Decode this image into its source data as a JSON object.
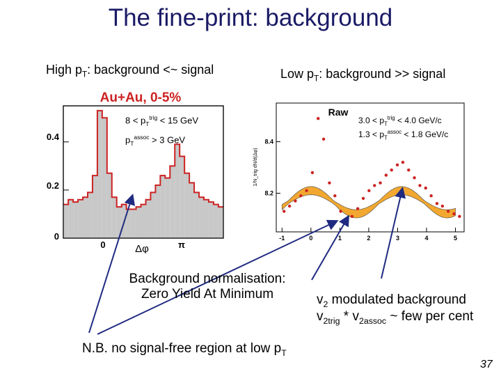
{
  "slide": {
    "title": "The fine-print: background",
    "page_number": "37",
    "left_header": {
      "text": "High p",
      "sub": "T",
      "rest": ": background <~ signal"
    },
    "right_header": {
      "text": "Low p",
      "sub": "T",
      "rest": ": background >> signal"
    },
    "note_normalisation": {
      "line1": "Background normalisation:",
      "line2": "Zero Yield At Minimum"
    },
    "note_v2": {
      "line1_main": "v",
      "line1_sub": "2",
      "line1_rest": " modulated background",
      "line2_a": "v",
      "line2_sub_a": "2trig",
      "line2_mid": " * v",
      "line2_sub_b": "2assoc",
      "line2_rest": " ~ few per cent"
    },
    "note_nb": {
      "text": "N.B. no signal-free region at low p",
      "sub": "T"
    },
    "arrow_color": "#1f2a80"
  },
  "chart_data": [
    {
      "type": "bar",
      "title": "Au+Au, 0-5%",
      "title_color": "#cc2222",
      "xlabel": "Δφ",
      "x_tick_labels": [
        "0",
        "π"
      ],
      "y_tick_labels": [
        "0",
        "0.2",
        "0.4"
      ],
      "ylim": [
        0,
        0.55
      ],
      "xlim": [
        -1.57,
        4.71
      ],
      "annotations": {
        "trig": {
          "a": "8 < p",
          "sub": "T",
          "sup": "trig",
          "b": " < 15 GeV"
        },
        "assoc": {
          "a": "p",
          "sub": "T",
          "sup": "assoc",
          "b": " > 3 GeV"
        }
      },
      "fill_color": "#c8c8c8",
      "edge_color": "#cc2222",
      "bins_x": [
        -1.47,
        -1.28,
        -1.09,
        -0.9,
        -0.71,
        -0.52,
        -0.33,
        -0.14,
        0.05,
        0.24,
        0.43,
        0.62,
        0.81,
        1.0,
        1.19,
        1.38,
        1.57,
        1.76,
        1.95,
        2.14,
        2.33,
        2.52,
        2.71,
        2.9,
        3.09,
        3.28,
        3.47,
        3.66,
        3.85,
        4.04,
        4.23,
        4.42,
        4.61
      ],
      "values": [
        0.14,
        0.16,
        0.15,
        0.16,
        0.17,
        0.19,
        0.26,
        0.53,
        0.5,
        0.27,
        0.17,
        0.13,
        0.14,
        0.12,
        0.12,
        0.13,
        0.14,
        0.16,
        0.19,
        0.22,
        0.26,
        0.25,
        0.3,
        0.39,
        0.34,
        0.27,
        0.23,
        0.19,
        0.17,
        0.16,
        0.15,
        0.14,
        0.13
      ]
    },
    {
      "type": "scatter",
      "title": "Raw",
      "ylabel": "1/N_trig dN/d(Δφ)",
      "x_tick_labels": [
        "-1",
        "0",
        "1",
        "2",
        "3",
        "4",
        "5"
      ],
      "y_tick_labels": [
        "8.2",
        "8.4"
      ],
      "xlim": [
        -1.2,
        5.3
      ],
      "ylim": [
        8.05,
        8.55
      ],
      "annotations": {
        "trig": {
          "a": "3.0 < p",
          "sub": "T",
          "sup": "trig",
          "b": " < 4.0 GeV/c"
        },
        "assoc": {
          "a": "1.3 < p",
          "sub": "T",
          "sup": "assoc",
          "b": " < 1.8 GeV/c"
        }
      },
      "point_color": "#cc2222",
      "band_color": "#f2a830",
      "band_edge_color": "#444444",
      "points": {
        "x": [
          -0.93,
          -0.74,
          -0.54,
          -0.35,
          -0.15,
          0.05,
          0.25,
          0.44,
          0.64,
          0.83,
          1.03,
          1.22,
          1.42,
          1.62,
          1.81,
          2.01,
          2.2,
          2.4,
          2.6,
          2.79,
          2.99,
          3.18,
          3.38,
          3.58,
          3.77,
          3.97,
          4.16,
          4.36,
          4.55,
          4.75,
          4.95,
          5.14
        ],
        "y": [
          8.13,
          8.15,
          8.17,
          8.19,
          8.21,
          8.28,
          8.49,
          8.41,
          8.24,
          8.19,
          8.13,
          8.1,
          8.11,
          8.14,
          8.18,
          8.21,
          8.23,
          8.24,
          8.27,
          8.29,
          8.31,
          8.32,
          8.29,
          8.26,
          8.23,
          8.22,
          8.19,
          8.16,
          8.15,
          8.13,
          8.12,
          8.11
        ]
      },
      "band": {
        "mean": 8.165,
        "v2_amplitude": 0.045,
        "half_width_min": 0.006,
        "half_width_max": 0.016
      }
    }
  ]
}
